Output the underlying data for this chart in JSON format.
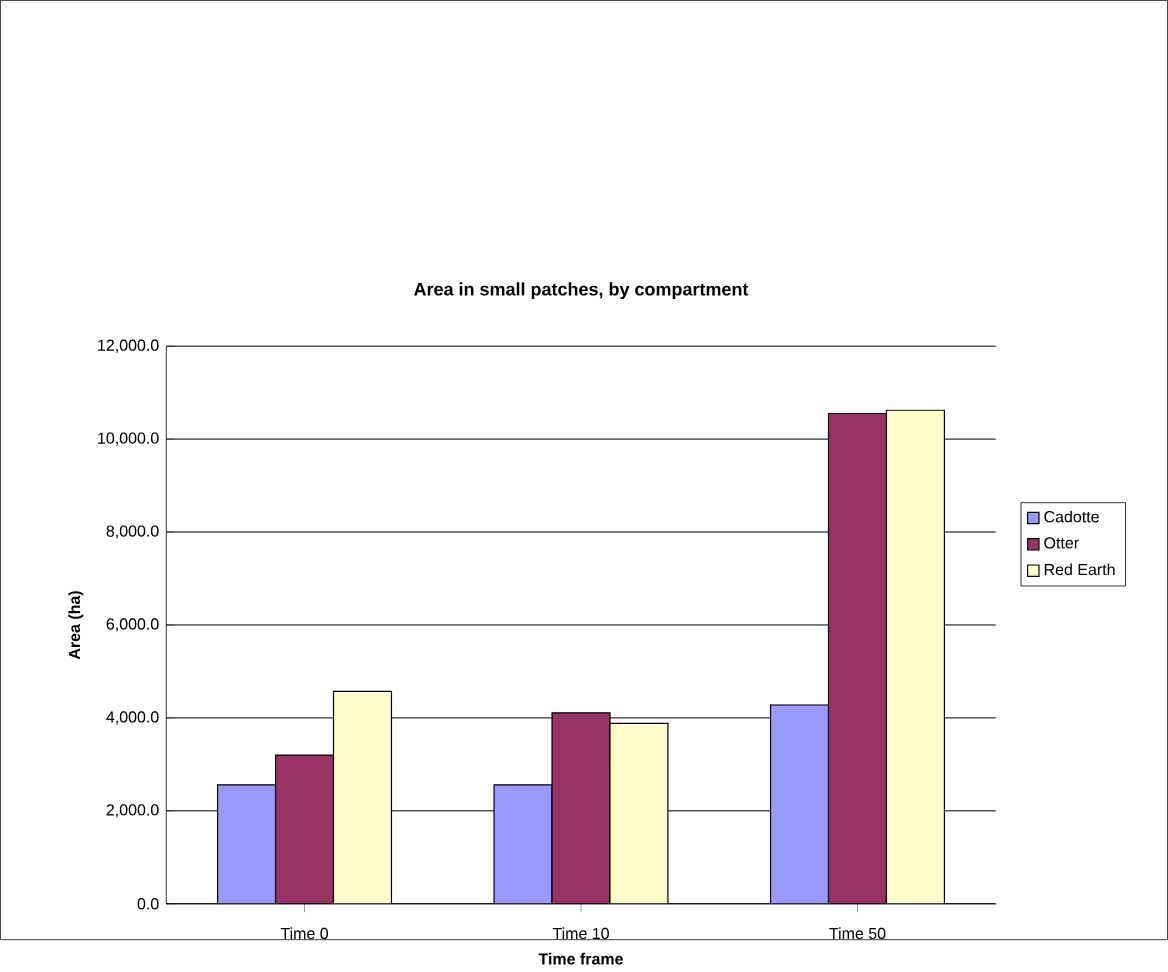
{
  "chart_data": {
    "type": "bar",
    "title": "Area in small patches, by compartment",
    "xlabel": "Time frame",
    "ylabel": "Area (ha)",
    "categories": [
      "Time 0",
      "Time 10",
      "Time 50"
    ],
    "series": [
      {
        "name": "Cadotte",
        "color": "#9999ff",
        "values": [
          2560,
          2560,
          4280
        ]
      },
      {
        "name": "Otter",
        "color": "#993366",
        "values": [
          3200,
          4110,
          10550
        ]
      },
      {
        "name": "Red Earth",
        "color": "#ffffcc",
        "values": [
          4570,
          3880,
          10620
        ]
      }
    ],
    "ylim": [
      0,
      12000
    ],
    "yticks": [
      {
        "value": 0,
        "label": "0.0"
      },
      {
        "value": 2000,
        "label": "2,000.0"
      },
      {
        "value": 4000,
        "label": "4,000.0"
      },
      {
        "value": 6000,
        "label": "6,000.0"
      },
      {
        "value": 8000,
        "label": "8,000.0"
      },
      {
        "value": 10000,
        "label": "10,000.0"
      },
      {
        "value": 12000,
        "label": "12,000.0"
      }
    ],
    "grid": "y",
    "legend": "right"
  }
}
